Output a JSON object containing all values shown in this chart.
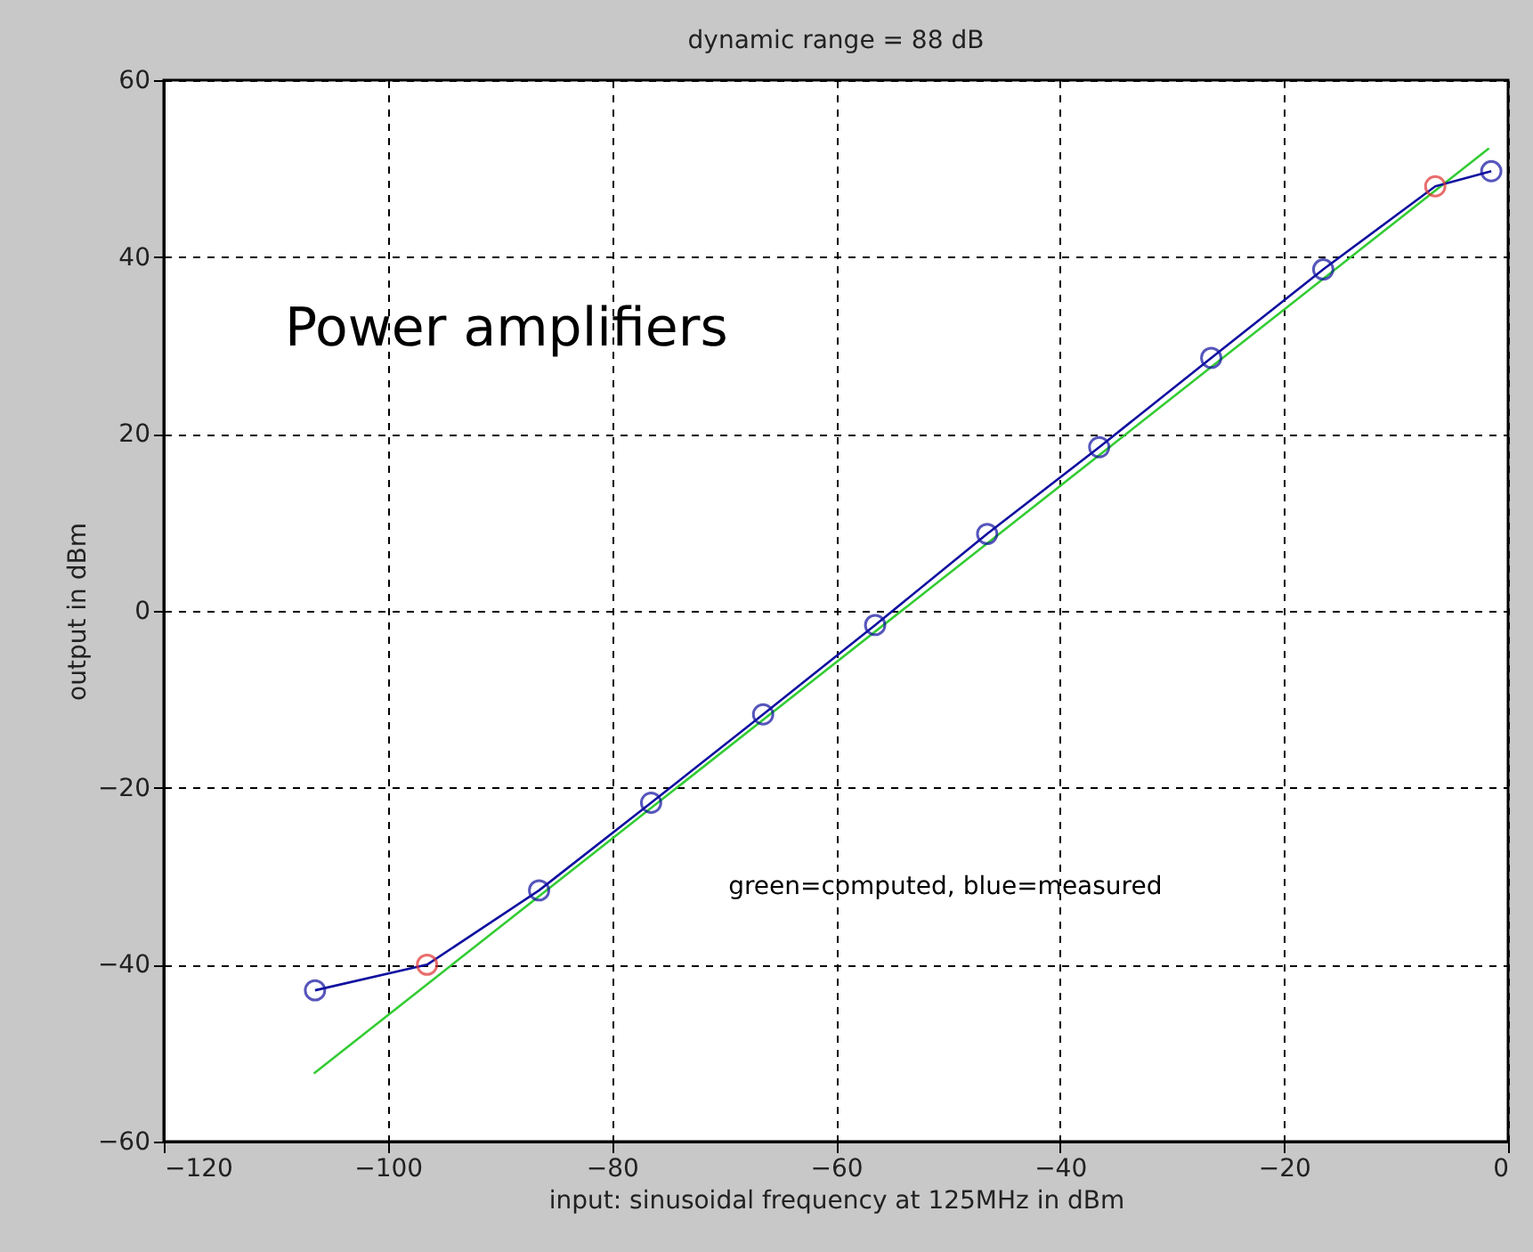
{
  "chart_data": {
    "type": "line",
    "title": "dynamic range = 88 dB",
    "xlabel": "input: sinusoidal frequency at 125MHz in dBm",
    "ylabel": "output in dBm",
    "annotations": [
      "Power amplifiers",
      "green=computed,    blue=measured"
    ],
    "series": [
      {
        "color": "#33cc33",
        "marker": "none",
        "x": [
          -106.6,
          -1.7
        ],
        "values": [
          -52.3,
          52.3
        ]
      },
      {
        "color": "#1010a0",
        "marker": "circle",
        "x": [
          -106.5,
          -96.5,
          -86.5,
          -76.5,
          -66.5,
          -56.5,
          -46.5,
          -36.5,
          -26.5,
          -16.5,
          -6.5,
          -1.5
        ],
        "values": [
          -42.9,
          -40,
          -31.6,
          -21.7,
          -11.7,
          -1.6,
          8.7,
          18.5,
          28.6,
          38.6,
          48,
          49.7
        ],
        "colors": [
          "#1010a0",
          "#e03030",
          "#1010a0",
          "#1010a0",
          "#1010a0",
          "#1010a0",
          "#1010a0",
          "#1010a0",
          "#1010a0",
          "#1010a0",
          "#e03030",
          "#1010a0"
        ]
      }
    ],
    "xlim": [
      -120,
      0
    ],
    "xticks": [
      -120,
      -100,
      -80,
      -60,
      -40,
      -20,
      0
    ],
    "ylim": [
      -60,
      60
    ],
    "yticks": [
      -60,
      -40,
      -20,
      0,
      20,
      40,
      60
    ],
    "grid": true,
    "legend": false
  }
}
